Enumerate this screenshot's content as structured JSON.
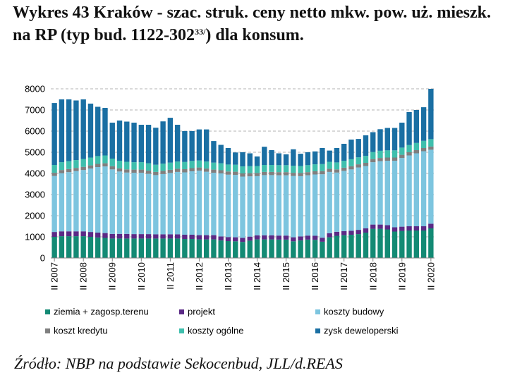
{
  "title": {
    "main": "Wykres 43 Kraków - szac. struk. ceny netto mkw. pow. uż. mieszk. na RP (typ bud. 1122-302",
    "superscript": "33/",
    "tail": ") dla konsum."
  },
  "source": "Źródło: NBP na podstawie Sekocenbud, JLL/d.REAS",
  "chart_data": {
    "type": "bar",
    "stacked": true,
    "ylim": [
      0,
      8000
    ],
    "yticks": [
      0,
      1000,
      2000,
      3000,
      4000,
      5000,
      6000,
      7000,
      8000
    ],
    "grid": "dashed horizontal",
    "legend_position": "bottom",
    "x_tick_labels": [
      "II 2007",
      "II 2008",
      "II 2009",
      "II 2010",
      "II 2011",
      "II 2012",
      "II 2013",
      "II 2014",
      "II 2015",
      "II 2016",
      "II 2017",
      "II 2018",
      "II 2019",
      "II 2020"
    ],
    "x_tick_positions": [
      0,
      4,
      8,
      12,
      16,
      20,
      24,
      28,
      32,
      36,
      40,
      44,
      48,
      52
    ],
    "n_bars": 53,
    "series": [
      {
        "name": "ziemia + zagosp.terenu",
        "color": "#138a74",
        "values": [
          1000,
          1030,
          1030,
          1030,
          1030,
          1000,
          970,
          950,
          920,
          920,
          920,
          920,
          920,
          920,
          920,
          920,
          920,
          920,
          900,
          900,
          880,
          880,
          880,
          830,
          800,
          790,
          760,
          820,
          880,
          880,
          880,
          870,
          870,
          790,
          830,
          870,
          860,
          770,
          980,
          1050,
          1080,
          1100,
          1130,
          1200,
          1380,
          1380,
          1350,
          1250,
          1280,
          1300,
          1300,
          1300,
          1400
        ]
      },
      {
        "name": "projekt",
        "color": "#5b2a86",
        "values": [
          230,
          230,
          230,
          230,
          230,
          230,
          230,
          230,
          220,
          220,
          220,
          210,
          210,
          210,
          200,
          200,
          200,
          200,
          200,
          200,
          200,
          200,
          200,
          190,
          190,
          190,
          190,
          190,
          190,
          190,
          190,
          190,
          190,
          190,
          190,
          190,
          190,
          190,
          190,
          190,
          190,
          190,
          200,
          200,
          200,
          200,
          200,
          200,
          200,
          200,
          200,
          200,
          220
        ]
      },
      {
        "name": "koszty budowy",
        "color": "#7dc5df",
        "values": [
          2650,
          2750,
          2800,
          2850,
          2900,
          3000,
          3100,
          3150,
          3050,
          2950,
          2900,
          2900,
          2900,
          2850,
          2800,
          2850,
          2900,
          2950,
          2950,
          3000,
          3050,
          3000,
          2950,
          2980,
          2950,
          2950,
          2900,
          2850,
          2800,
          2850,
          2850,
          2850,
          2850,
          2900,
          2850,
          2850,
          2900,
          3000,
          2900,
          2800,
          2850,
          2900,
          2950,
          2950,
          2950,
          3000,
          3050,
          3150,
          3250,
          3350,
          3450,
          3550,
          3500
        ]
      },
      {
        "name": "koszt kredytu",
        "color": "#7f7f7f",
        "values": [
          150,
          150,
          150,
          150,
          150,
          150,
          150,
          150,
          150,
          150,
          150,
          150,
          150,
          150,
          150,
          150,
          150,
          150,
          150,
          150,
          150,
          150,
          150,
          150,
          150,
          150,
          150,
          150,
          150,
          150,
          150,
          150,
          150,
          150,
          150,
          150,
          150,
          150,
          150,
          150,
          150,
          150,
          150,
          150,
          150,
          150,
          150,
          150,
          150,
          150,
          150,
          150,
          150
        ]
      },
      {
        "name": "koszty ogólne",
        "color": "#3fbfad",
        "values": [
          370,
          370,
          370,
          370,
          370,
          370,
          370,
          370,
          360,
          360,
          360,
          350,
          350,
          350,
          340,
          340,
          340,
          340,
          340,
          340,
          330,
          330,
          330,
          330,
          330,
          330,
          330,
          330,
          330,
          330,
          330,
          330,
          330,
          330,
          330,
          330,
          330,
          330,
          330,
          330,
          330,
          330,
          330,
          330,
          330,
          340,
          340,
          340,
          340,
          340,
          340,
          340,
          350
        ]
      },
      {
        "name": "zysk deweloperski",
        "color": "#1a6fa3",
        "values": [
          2930,
          2970,
          2920,
          2820,
          2820,
          2550,
          2330,
          2250,
          1700,
          1900,
          1900,
          1870,
          1770,
          1820,
          1750,
          2000,
          2120,
          1740,
          1460,
          1410,
          1470,
          1520,
          1020,
          870,
          780,
          580,
          670,
          610,
          450,
          860,
          700,
          560,
          510,
          780,
          580,
          610,
          610,
          760,
          530,
          680,
          800,
          930,
          870,
          970,
          940,
          1020,
          1060,
          1060,
          1180,
          1560,
          1560,
          1590,
          2380
        ]
      }
    ]
  }
}
